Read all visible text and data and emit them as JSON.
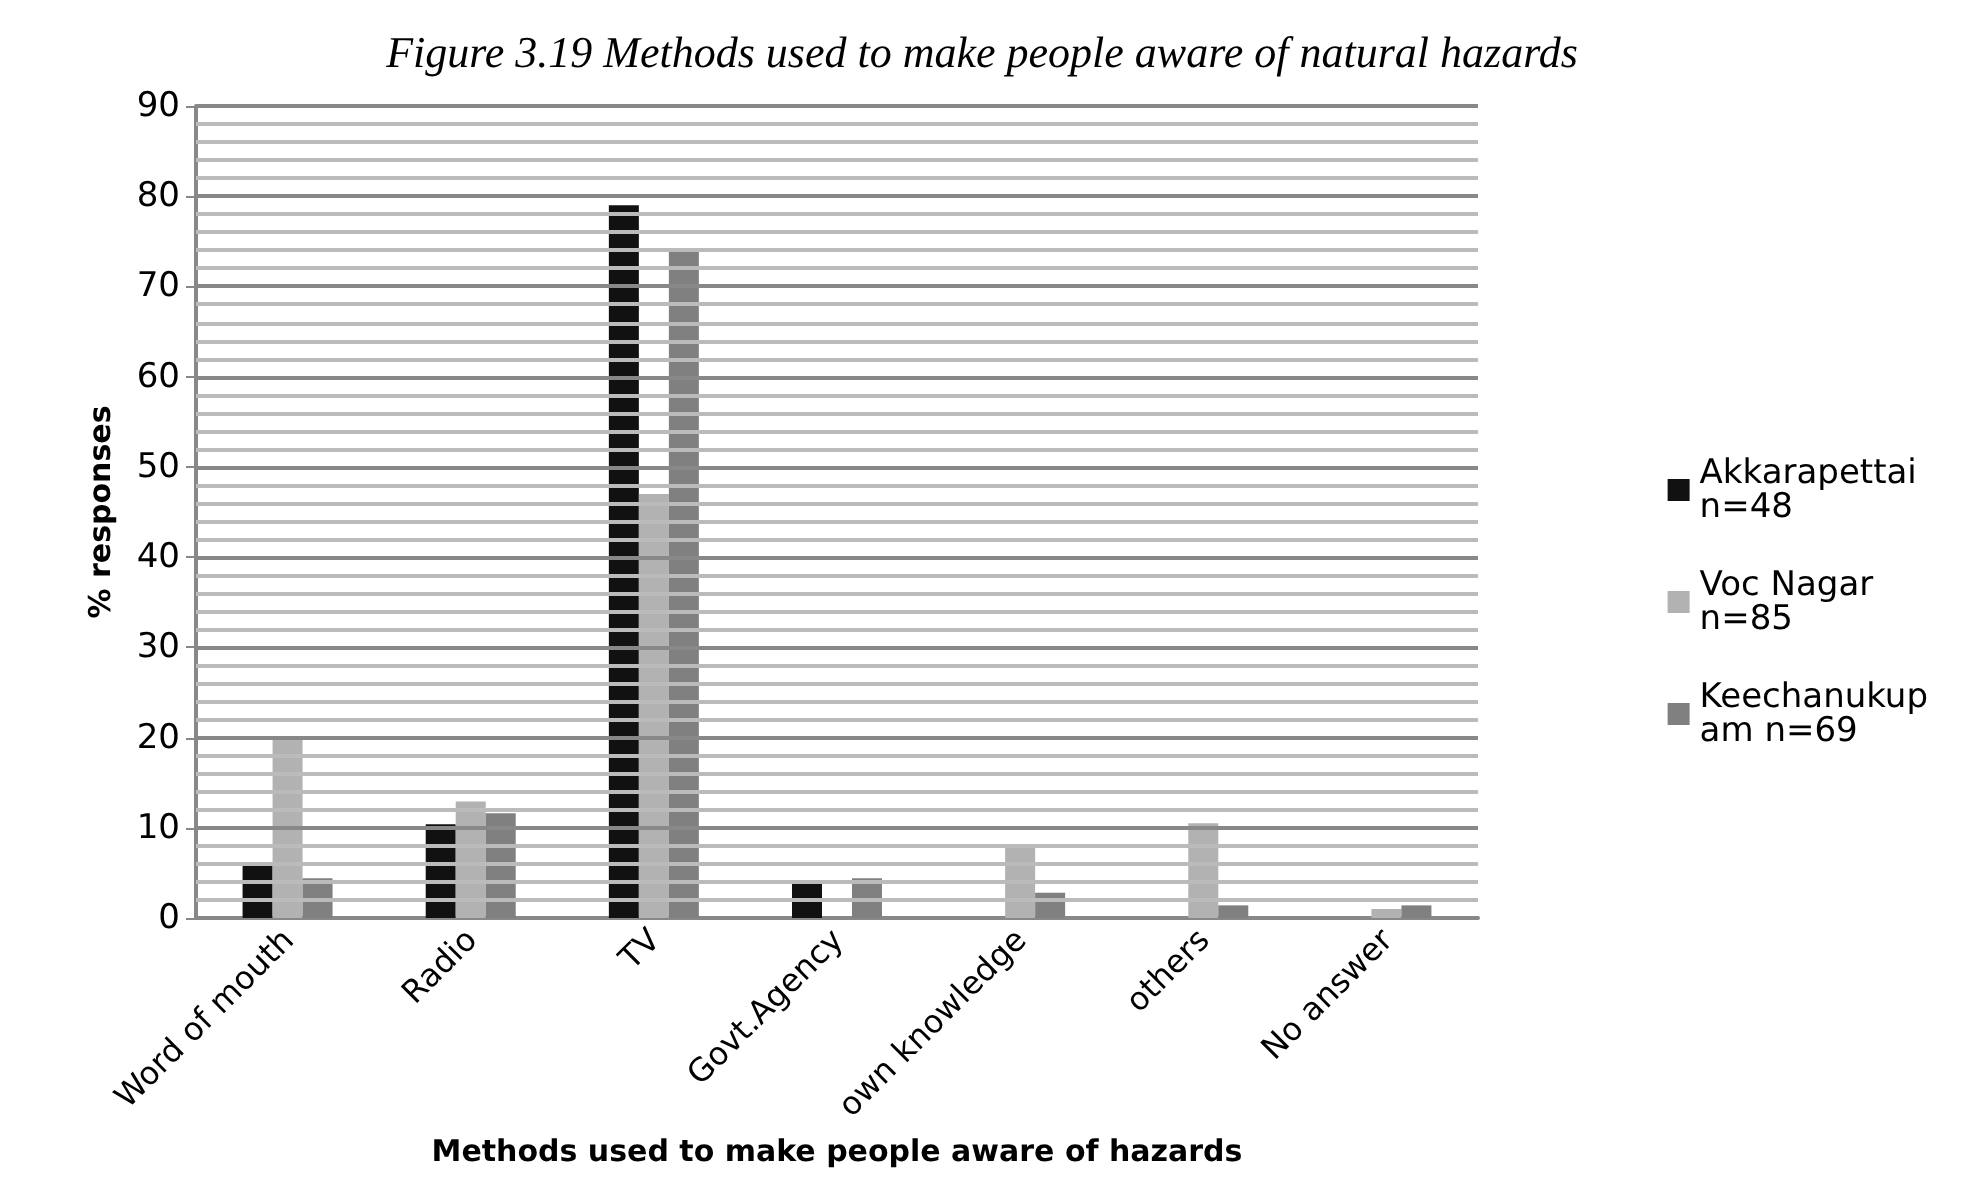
{
  "chart_data": {
    "type": "bar",
    "title": "Figure 3.19 Methods used to make people aware of natural hazards",
    "xlabel": "Methods used to make people aware of hazards",
    "ylabel": "% responses",
    "categories": [
      "Word of mouth",
      "Radio",
      "TV",
      "Govt.Agency",
      "own knowledge",
      "others",
      "No answer"
    ],
    "series": [
      {
        "name": "Akkarapettai n=48",
        "color": "#111111",
        "values": [
          6.2,
          10.4,
          79,
          4.2,
          0,
          0,
          0
        ]
      },
      {
        "name": "Voc Nagar n=85",
        "color": "#b2b2b2",
        "values": [
          20,
          12.9,
          47,
          0,
          8.1,
          10.5,
          1
        ]
      },
      {
        "name": "Keechanukupam n=69",
        "color": "#808080",
        "values": [
          4.4,
          11.6,
          74,
          4.4,
          2.8,
          1.4,
          1.4
        ]
      }
    ],
    "ylim": [
      0,
      90
    ],
    "yticks": [
      0,
      {
        "value": 2,
        "label": null
      },
      {
        "value": 4,
        "label": null
      },
      {
        "value": 6,
        "label": null
      },
      {
        "value": 8,
        "label": null
      },
      10,
      {
        "value": 12,
        "label": null
      },
      {
        "value": 14,
        "label": null
      },
      {
        "value": 16,
        "label": null
      },
      {
        "value": 18,
        "label": null
      },
      20,
      {
        "value": 22,
        "label": null
      },
      {
        "value": 24,
        "label": null
      },
      {
        "value": 26,
        "label": null
      },
      {
        "value": 28,
        "label": null
      },
      30,
      {
        "value": 32,
        "label": null
      },
      {
        "value": 34,
        "label": null
      },
      {
        "value": 36,
        "label": null
      },
      {
        "value": 38,
        "label": null
      },
      40,
      {
        "value": 42,
        "label": null
      },
      {
        "value": 44,
        "label": null
      },
      {
        "value": 46,
        "label": null
      },
      {
        "value": 48,
        "label": null
      },
      50,
      {
        "value": 52,
        "label": null
      },
      {
        "value": 54,
        "label": null
      },
      {
        "value": 56,
        "label": null
      },
      {
        "value": 58,
        "label": null
      },
      60,
      {
        "value": 62,
        "label": null
      },
      {
        "value": 64,
        "label": null
      },
      {
        "value": 66,
        "label": null
      },
      {
        "value": 68,
        "label": null
      },
      70,
      {
        "value": 72,
        "label": null
      },
      {
        "value": 74,
        "label": null
      },
      {
        "value": 76,
        "label": null
      },
      {
        "value": 78,
        "label": null
      },
      80,
      {
        "value": 82,
        "label": null
      },
      {
        "value": 84,
        "label": null
      },
      {
        "value": 86,
        "label": null
      },
      {
        "value": 88,
        "label": null
      },
      90
    ],
    "grid": "y",
    "legend": "right"
  }
}
